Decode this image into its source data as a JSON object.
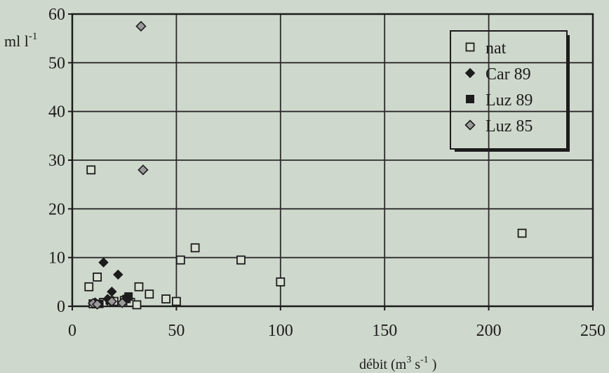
{
  "chart_data": {
    "type": "scatter",
    "title": "",
    "xlabel": "débit (m3 s-1 )",
    "xlabel_parts": {
      "pre": "débit (m",
      "sup1": "3",
      "mid": " s",
      "sup2": "-1",
      "post": " )"
    },
    "ylabel": "ml l-1",
    "ylabel_parts": {
      "pre": "ml l",
      "sup": "-1"
    },
    "xlim": [
      0,
      250
    ],
    "ylim": [
      0,
      60
    ],
    "x_ticks": [
      "0",
      "50",
      "100",
      "150",
      "200",
      "250"
    ],
    "y_ticks": [
      "0",
      "10",
      "20",
      "30",
      "40",
      "50",
      "60"
    ],
    "grid": true,
    "legend_position": "top-right",
    "colors": {
      "background": "#cfd8cc",
      "ink": "#1c1c1c",
      "grid": "#2a2a2a"
    },
    "series": [
      {
        "name": "nat",
        "marker": "hollow-square",
        "points": [
          [
            8,
            4
          ],
          [
            12,
            6
          ],
          [
            9,
            28
          ],
          [
            10,
            0.5
          ],
          [
            15,
            0.8
          ],
          [
            20,
            1.0
          ],
          [
            25,
            1.2
          ],
          [
            28,
            0.8
          ],
          [
            31,
            0.3
          ],
          [
            32,
            4
          ],
          [
            37,
            2.5
          ],
          [
            45,
            1.5
          ],
          [
            50,
            1.0
          ],
          [
            52,
            9.5
          ],
          [
            59,
            12
          ],
          [
            81,
            9.5
          ],
          [
            100,
            5
          ],
          [
            216,
            15
          ]
        ]
      },
      {
        "name": "Car 89",
        "marker": "filled-diamond",
        "points": [
          [
            15,
            9
          ],
          [
            19,
            3
          ],
          [
            22,
            6.5
          ],
          [
            17,
            1.5
          ],
          [
            11,
            0.8
          ]
        ]
      },
      {
        "name": "Luz 89",
        "marker": "filled-square",
        "points": [
          [
            26,
            1.5
          ],
          [
            27,
            2
          ],
          [
            13,
            0.5
          ],
          [
            18,
            1.2
          ]
        ]
      },
      {
        "name": "Luz 85",
        "marker": "hollow-diamond",
        "points": [
          [
            33,
            57.5
          ],
          [
            34,
            28
          ],
          [
            10,
            0.6
          ],
          [
            12,
            0.4
          ],
          [
            19,
            1.0
          ],
          [
            24,
            0.7
          ]
        ]
      }
    ]
  }
}
